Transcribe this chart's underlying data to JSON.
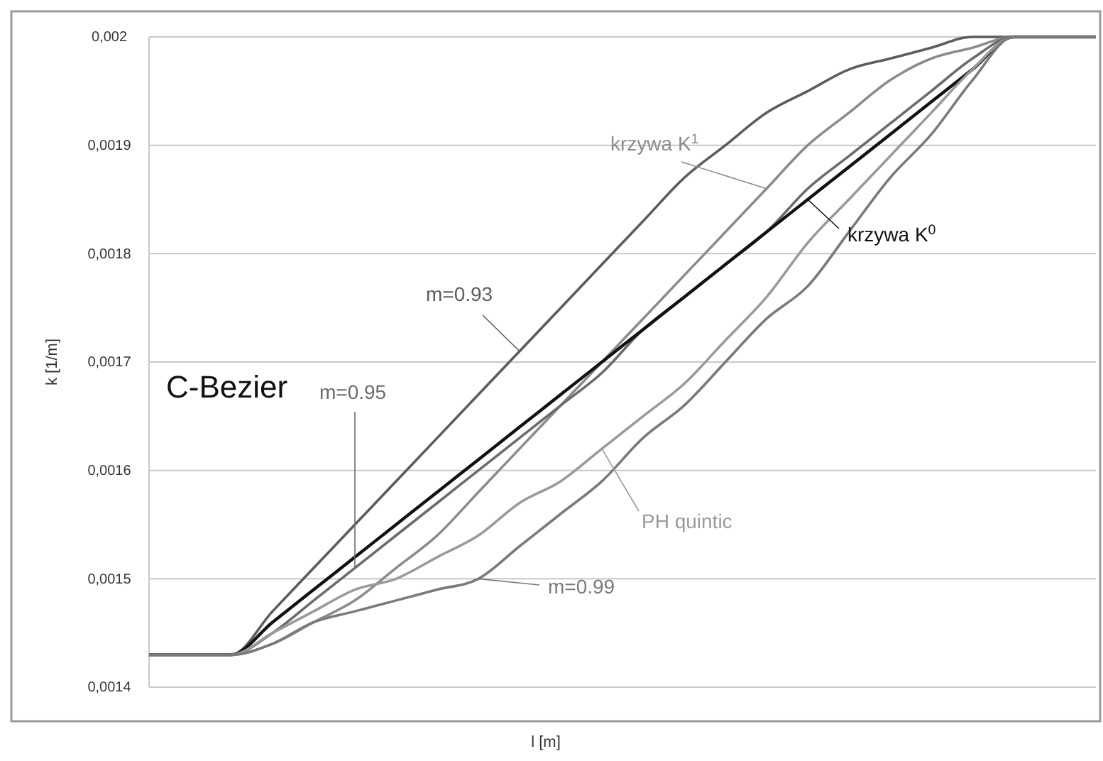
{
  "chart_data": {
    "type": "line",
    "xlabel": "l [m]",
    "ylabel": "k [1/m]",
    "annotations": [
      "C-Bezier"
    ],
    "categories": [
      null,
      null,
      null,
      null,
      null,
      null,
      null,
      null,
      null,
      null,
      null,
      null,
      null,
      null,
      null,
      null,
      null,
      null,
      null,
      null,
      null,
      null,
      null,
      null
    ],
    "ylim": [
      0.0014,
      0.002
    ],
    "yticks": [
      {
        "value": 0.0014,
        "label": "0,0014"
      },
      {
        "value": 0.0015,
        "label": "0,0015"
      },
      {
        "value": 0.0016,
        "label": "0,0016"
      },
      {
        "value": 0.0017,
        "label": "0,0017"
      },
      {
        "value": 0.0018,
        "label": "0,0018"
      },
      {
        "value": 0.0019,
        "label": "0,0019"
      },
      {
        "value": 0.002,
        "label": "0,002"
      }
    ],
    "grid": "y",
    "marker": "none",
    "line_style": "solid",
    "series": [
      {
        "name": "m=0.93",
        "color": "#5c5c5c",
        "values": [
          0.00143,
          0.00143,
          0.00143,
          0.00147,
          0.00151,
          0.00155,
          0.00159,
          0.00163,
          0.00167,
          0.00171,
          0.00175,
          0.00179,
          0.00183,
          0.00187,
          0.0019,
          0.00193,
          0.00195,
          0.00197,
          0.00198,
          0.00199,
          0.002,
          0.002,
          0.002,
          0.002
        ]
      },
      {
        "name": "krzywa K$^{1}$",
        "color": "#8c8c8c",
        "values": [
          0.00143,
          0.00143,
          0.00143,
          0.00144,
          0.00146,
          0.00148,
          0.00151,
          0.00154,
          0.00158,
          0.00162,
          0.00166,
          0.0017,
          0.00174,
          0.00178,
          0.00182,
          0.00186,
          0.0019,
          0.00193,
          0.00196,
          0.00198,
          0.00199,
          0.002,
          0.002,
          0.002
        ]
      },
      {
        "name": "m=0.95",
        "color": "#6b6b6b",
        "values": [
          0.00143,
          0.00143,
          0.00143,
          0.00145,
          0.00148,
          0.00151,
          0.00154,
          0.00157,
          0.0016,
          0.00163,
          0.00166,
          0.00169,
          0.00173,
          0.00176,
          0.00179,
          0.00182,
          0.00186,
          0.00189,
          0.00192,
          0.00195,
          0.00198,
          0.002,
          0.002,
          0.002
        ]
      },
      {
        "name": "krzywa K$^{0}$",
        "color": "#111111",
        "values": [
          0.00143,
          0.00143,
          0.00143,
          0.00146,
          0.00149,
          0.00152,
          0.00155,
          0.00158,
          0.00161,
          0.00164,
          0.00167,
          0.0017,
          0.00173,
          0.00176,
          0.00179,
          0.00182,
          0.00185,
          0.00188,
          0.00191,
          0.00194,
          0.00197,
          0.002,
          0.002,
          0.002
        ]
      },
      {
        "name": "PH quintic",
        "color": "#9a9a9a",
        "values": [
          0.00143,
          0.00143,
          0.00143,
          0.00145,
          0.00147,
          0.00149,
          0.0015,
          0.00152,
          0.00154,
          0.00157,
          0.00159,
          0.00162,
          0.00165,
          0.00168,
          0.00172,
          0.00176,
          0.00181,
          0.00185,
          0.00189,
          0.00193,
          0.00197,
          0.002,
          0.002,
          0.002
        ]
      },
      {
        "name": "m=0.99",
        "color": "#7a7a7a",
        "values": [
          0.00143,
          0.00143,
          0.00143,
          0.00144,
          0.00146,
          0.00147,
          0.00148,
          0.00149,
          0.0015,
          0.00153,
          0.00156,
          0.00159,
          0.00163,
          0.00166,
          0.0017,
          0.00174,
          0.00177,
          0.00182,
          0.00187,
          0.00191,
          0.00196,
          0.002,
          0.002,
          0.002
        ]
      }
    ]
  }
}
